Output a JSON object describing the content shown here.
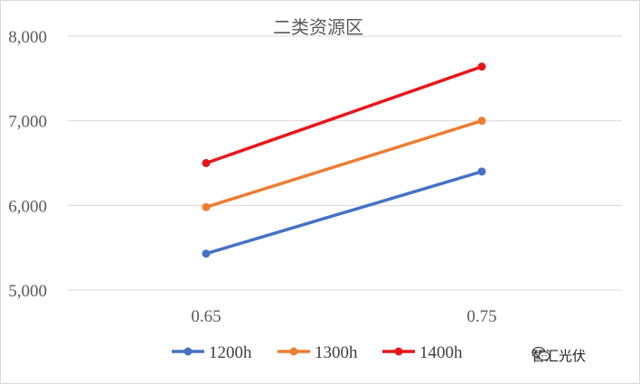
{
  "chart_data": {
    "type": "line",
    "title": "二类资源区",
    "categories": [
      "0.65",
      "0.75"
    ],
    "series": [
      {
        "name": "1200h",
        "color": "#4472c4",
        "values": [
          5430,
          6400
        ]
      },
      {
        "name": "1300h",
        "color": "#ed7d31",
        "values": [
          5980,
          7000
        ]
      },
      {
        "name": "1400h",
        "color": "#e8151b",
        "values": [
          6500,
          7640
        ]
      }
    ],
    "ylim": [
      5000,
      8000
    ],
    "yticks": [
      5000,
      6000,
      7000,
      8000
    ],
    "ytick_labels": [
      "5,000",
      "6,000",
      "7,000",
      "8,000"
    ],
    "grid": true,
    "legend": "bottom"
  },
  "watermark": {
    "text": "智汇光伏"
  }
}
